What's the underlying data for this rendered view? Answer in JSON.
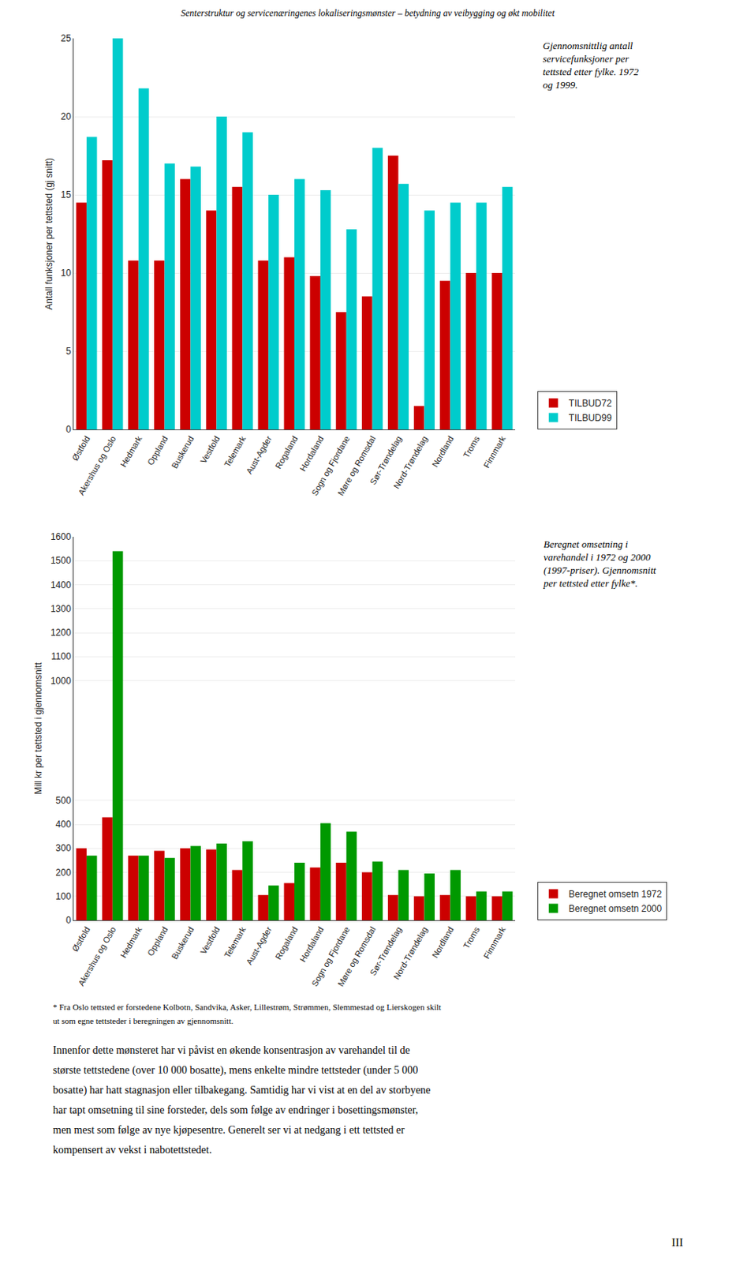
{
  "header": "Senterstruktur og servicenæringenes lokaliseringsmønster – betydning av veibygging og økt mobilitet",
  "chart_data": [
    {
      "type": "bar",
      "categories": [
        "Østfold",
        "Akershus og Oslo",
        "Hedmark",
        "Oppland",
        "Buskerud",
        "Vestfold",
        "Telemark",
        "Aust-Agder",
        "Rogaland",
        "Hordaland",
        "Sogn og Fjordane",
        "Møre og Romsdal",
        "Sør-Trøndelag",
        "Nord-Trøndelag",
        "Nordland",
        "Troms",
        "Finnmark"
      ],
      "series": [
        {
          "name": "TILBUD72",
          "color": "#cc0000",
          "values": [
            14.5,
            17.2,
            10.8,
            10.8,
            16.0,
            14.0,
            15.5,
            10.8,
            11.0,
            9.8,
            7.5,
            8.5,
            17.5,
            1.5,
            9.5,
            10.0,
            10.0
          ]
        },
        {
          "name": "TILBUD99",
          "color": "#00cccc",
          "values": [
            18.7,
            25.0,
            21.8,
            17.0,
            16.8,
            20.0,
            19.0,
            15.0,
            16.0,
            15.3,
            12.8,
            18.0,
            15.7,
            14.0,
            14.5,
            14.5,
            15.5
          ]
        }
      ],
      "ylabel": "Antall funksjoner per tettsted (gj snitt)",
      "ylim": [
        0,
        25
      ],
      "yticks": [
        0,
        5,
        10,
        15,
        20,
        25
      ],
      "grid": true,
      "legend": "right",
      "annotation": "Gjennomsnittlig antall\nservicefunksjoner per\ntettsted etter fylke. 1972\nog 1999."
    },
    {
      "type": "bar",
      "categories": [
        "Østfold",
        "Akershus og Oslo",
        "Hedmark",
        "Oppland",
        "Buskerud",
        "Vestfold",
        "Telemark",
        "Aust-Agder",
        "Rogaland",
        "Hordaland",
        "Sogn og Fjordane",
        "Møre og Romsdal",
        "Sør-Trøndelag",
        "Nord-Trøndelag",
        "Nordland",
        "Troms",
        "Finnmark"
      ],
      "series": [
        {
          "name": "Beregnet omsetn 1972",
          "color": "#cc0000",
          "values": [
            300,
            430,
            270,
            290,
            300,
            295,
            210,
            105,
            155,
            220,
            240,
            200,
            105,
            100,
            105,
            100,
            100
          ]
        },
        {
          "name": "Beregnet omsetn 2000",
          "color": "#009900",
          "values": [
            270,
            1540,
            270,
            260,
            310,
            320,
            330,
            145,
            240,
            405,
            370,
            245,
            210,
            195,
            210,
            120,
            120
          ]
        }
      ],
      "ylabel": "Mill kr per tettsted i gjennomsnitt",
      "ylim": [
        0,
        1600
      ],
      "yticks": [
        0,
        100,
        200,
        300,
        400,
        500,
        1000,
        1100,
        1200,
        1300,
        1400,
        1500,
        1600
      ],
      "grid": true,
      "legend": "right",
      "annotation": "Beregnet omsetning i\nvarehandel i 1972 og 2000\n(1997-priser). Gjennomsnitt\nper tettsted etter fylke*."
    }
  ],
  "footnotes": [
    "* Fra Oslo tettsted er forstedene Kolbotn, Sandvika, Asker, Lillestrøm, Strømmen, Slemmestad og Lierskogen skilt",
    "ut som egne tettsteder i beregningen av gjennomsnitt."
  ],
  "body_text": [
    "Innenfor dette mønsteret har vi påvist en økende konsentrasjon av varehandel til de",
    "største tettstedene (over 10 000 bosatte), mens enkelte mindre tettsteder (under 5 000",
    "bosatte) har hatt stagnasjon eller tilbakegang. Samtidig har vi vist at en del av storbyene",
    "har tapt omsetning til sine forsteder, dels som følge av endringer i bosettingsmønster,",
    "men mest som følge av nye kjøpesentre. Generelt ser vi at nedgang i ett tettsted er",
    "kompensert av vekst i nabotettstedet."
  ],
  "page_number": "III"
}
